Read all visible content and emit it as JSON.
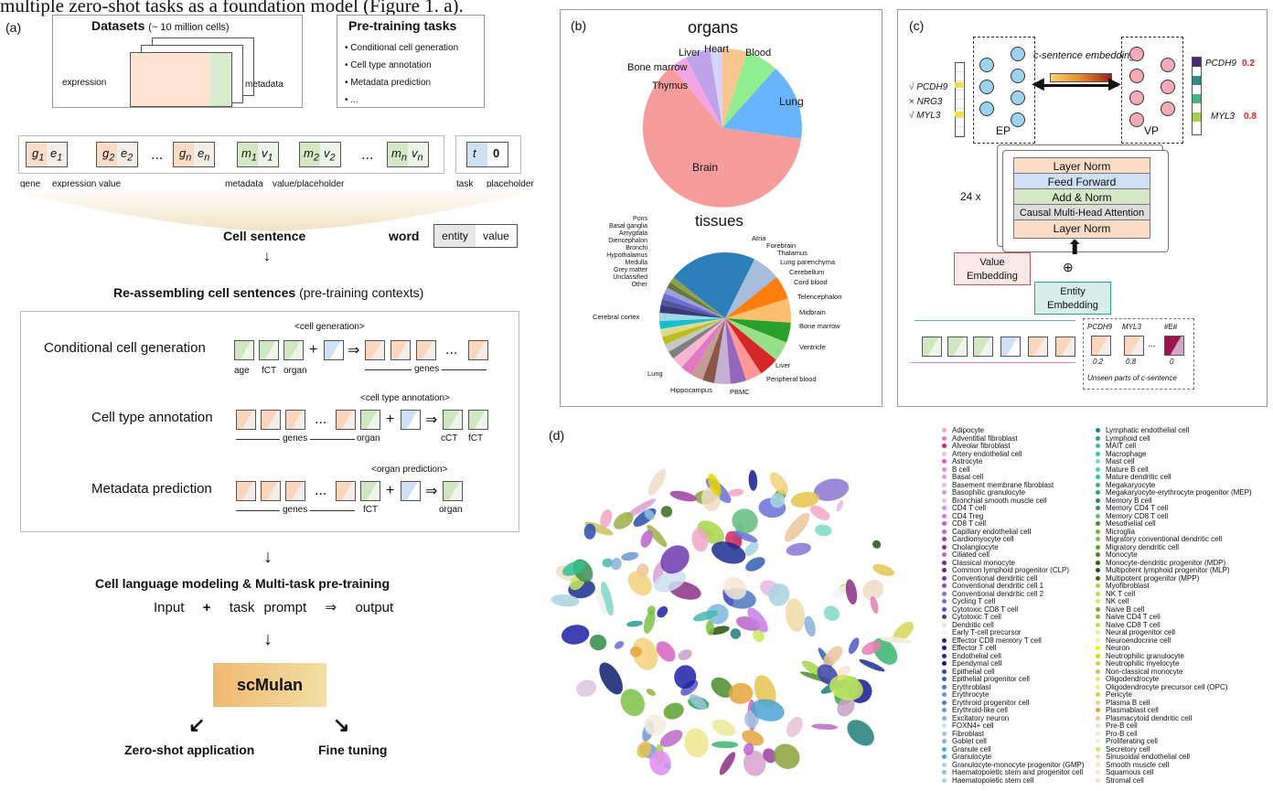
{
  "top_text": "multiple zero-shot tasks as a foundation model (Figure 1. a).",
  "panel_a": {
    "label": "(a)",
    "datasets_title": "Datasets",
    "datasets_sub": "(~ 10 million cells)",
    "expression": "expression",
    "metadata": "metadata",
    "pretrain_title": "Pre-training tasks",
    "pretrain_items": [
      "Conditional cell generation",
      "Cell type annotation",
      "Metadata prediction",
      "..."
    ],
    "tok_gene": "gene",
    "tok_expr": "expression value",
    "tok_metadata": "metadata",
    "tok_value": "value/placeholder",
    "tok_task": "task",
    "tok_placeholder": "placeholder",
    "cell_sentence": "Cell sentence",
    "word": "word",
    "entity": "entity",
    "value": "value",
    "reassembling": "Re-assembling cell sentences",
    "reassembling_sub": "(pre-training contexts)",
    "task1": "Conditional cell generation",
    "task1_prompt": "<cell generation>",
    "task1_labels": [
      "age",
      "fCT",
      "organ"
    ],
    "task2": "Cell type annotation",
    "task2_prompt": "<cell type annotation>",
    "task2_labels": [
      "organ",
      "cCT",
      "fCT"
    ],
    "task3": "Metadata prediction",
    "task3_prompt": "<organ prediction>",
    "task3_labels": [
      "fCT",
      "organ"
    ],
    "genes": "genes",
    "ellipsis": "...",
    "cell_lang": "Cell language modeling & Multi-task pre-training",
    "formula_input": "Input",
    "formula_plus": "+",
    "formula_task": "task prompt",
    "formula_arrow": "⇒",
    "formula_output": "output",
    "scmulan": "scMulan",
    "zero_shot": "Zero-shot application",
    "fine_tuning": "Fine tuning"
  },
  "panel_b": {
    "label": "(b)",
    "organs_title": "organs",
    "tissues_title": "tissues",
    "organ_labels": [
      "Liver",
      "Heart",
      "Blood",
      "Bone marrow",
      "Thymus",
      "Lung",
      "Brain"
    ],
    "tissue_left_labels": [
      "Pons",
      "Basal ganglia",
      "Amygdala",
      "Diencephalon",
      "Bronchi",
      "Hypothalamus",
      "Medulla",
      "Grey matter",
      "Unclassified",
      "Other"
    ],
    "tissue_right_labels": [
      "Atria",
      "Forebrain",
      "Thalamus",
      "Lung parenchyma",
      "Cerebellum",
      "Cord blood",
      "Telencephalon",
      "Midbrain",
      "Bone marrow",
      "Ventricle",
      "Liver",
      "Peripheral blood",
      "PBMC",
      "Hippocampus",
      "Lung",
      "Cerebral cortex"
    ]
  },
  "panel_c": {
    "label": "(c)",
    "c_sentence_embedding": "c-sentence embedding",
    "genes_in": [
      "PCDH9",
      "NRG3",
      "MYL3"
    ],
    "marks": [
      "√",
      "×",
      "√"
    ],
    "ep": "EP",
    "vp": "VP",
    "out_genes": [
      "PCDH9",
      "MYL3"
    ],
    "out_values": [
      "0.2",
      "0.8"
    ],
    "repeat": "24 x",
    "layers": [
      "Layer Norm",
      "Feed Forward",
      "Add & Norm",
      "Causal Multi-Head Attention",
      "Layer Norm"
    ],
    "value_embedding": "Value\nEmbedding",
    "entity_embedding": "Entity\nEmbedding",
    "unseen_genes": [
      "PCDH9",
      "MYL3",
      "#E#"
    ],
    "unseen_vals": [
      "0.2",
      "0.8",
      "0"
    ],
    "unseen_caption": "Unseen parts of c-sentence"
  },
  "panel_d": {
    "label": "(d)",
    "legend_col1": [
      "Adipocyte",
      "Adventitial fibroblast",
      "Alveolar fibroblast",
      "Artery endothelial cell",
      "Astrocyte",
      "B cell",
      "Basal cell",
      "Basement membrane fibroblast",
      "Basophilic granulocyte",
      "Bronchial smooth muscle cell",
      "CD4 T cell",
      "CD4 Treg",
      "CD8 T cell",
      "Capillary endothelial cell",
      "Cardiomyocyte cell",
      "Cholangiocyte",
      "Ciliated cell",
      "Classical monocyte",
      "Common lymphoid progenitor (CLP)",
      "Conventional dendritic cell",
      "Conventional dendritic cell 1",
      "Conventional dendritic cell 2",
      "Cycling T cell",
      "Cytotoxic CD8 T cell",
      "Cytotoxic T cell",
      "Dendritic cell",
      "Early T-cell precursor",
      "Effector CD8 memory T cell",
      "Effector T cell",
      "Endothelial cell",
      "Ependymal cell",
      "Epithelial cell",
      "Epithelial progenitor cell",
      "Erythroblast",
      "Erythrocyte",
      "Erythroid progenitor cell",
      "Erythroid-like cell",
      "Excitatory neuron",
      "FOXN4+ cell",
      "Fibroblast",
      "Goblet cell",
      "Granule cell",
      "Granulocyte",
      "Granulocyte-monocyte progenitor (GMP)",
      "Haematopoietic stem and progenitor cell",
      "Haematopoietic stem cell"
    ],
    "legend_col2": [
      "Lymphatic endothelial cell",
      "Lymphoid cell",
      "MAIT cell",
      "Macrophage",
      "Mast cell",
      "Mature B cell",
      "Mature dendritic cell",
      "Megakaryocyte",
      "Megakaryocyte-erythrocyte progenitor (MEP)",
      "Memory B cell",
      "Memory CD4 T cell",
      "Memory CD8 T cell",
      "Mesothelial cell",
      "Microglia",
      "Migratory conventional dendritic cell",
      "Migratory dendritic cell",
      "Monocyte",
      "Monocyte-dendritic progenitor (MDP)",
      "Multipotent lymphoid progenitor (MLP)",
      "Multipotent progenitor (MPP)",
      "Myofibroblast",
      "NK T cell",
      "NK cell",
      "Naive B cell",
      "Naive CD4 T cell",
      "Naive CD8 T cell",
      "Neural progenitor cell",
      "Neuroendocrine cell",
      "Neuron",
      "Neutrophilic granulocyte",
      "Neutrophilic myelocyte",
      "Non-classical monocyte",
      "Oligodendrocyte",
      "Oligodendrocyte precursor cell (OPC)",
      "Pericyte",
      "Plasma B cell",
      "Plasmablast cell",
      "Plasmacytoid dendritic cell",
      "Pre-B cell",
      "Pro-B cell",
      "Proliferating cell",
      "Secretory cell",
      "Sinusoidal endothelial cell",
      "Smooth muscle cell",
      "Squamous cell",
      "Stromal cell"
    ],
    "legend_colors1": [
      "#f3a6c8",
      "#e67fb2",
      "#d1245e",
      "#e8c2d3",
      "#d760c2",
      "#e88adf",
      "#d9a2d0",
      "#e8b8e2",
      "#c9a0c7",
      "#ddc6df",
      "#e28df3",
      "#c77ee8",
      "#c455e6",
      "#b864c9",
      "#9d3ea6",
      "#8d2f87",
      "#bb69c6",
      "#7b2a84",
      "#5d2a8a",
      "#6b3ab0",
      "#7a53c1",
      "#8b74d6",
      "#6870d6",
      "#5056c8",
      "#3c42a8",
      "#e5e2ec",
      "#f3f3f7",
      "#1d1fa3",
      "#151a90",
      "#1a2d8f",
      "#0d1d6f",
      "#2a4ea8",
      "#2f5fb3",
      "#4b78c6",
      "#6f95d3",
      "#4e80c0",
      "#6d9bd4",
      "#8ab0dc",
      "#cfdff0",
      "#9cc4e2",
      "#7db7de",
      "#5aa8d8",
      "#4aa3d4",
      "#a9d1e6",
      "#8cc2dc",
      "#a8d4e0"
    ],
    "legend_colors2": [
      "#1f7d7a",
      "#2a9a94",
      "#48b7ad",
      "#39c0ae",
      "#7fd8c6",
      "#4fd0ae",
      "#2fc28e",
      "#3ab36f",
      "#26a84f",
      "#2e8b46",
      "#3a8f55",
      "#66bb7f",
      "#4a8b2e",
      "#6fb43c",
      "#7dc147",
      "#5aa12c",
      "#4a7f24",
      "#2e5e16",
      "#2b4f12",
      "#3a6b1b",
      "#a6d64a",
      "#b7e04d",
      "#c7e85f",
      "#8aa23a",
      "#9fae45",
      "#d4d65c",
      "#eaea9a",
      "#f1eeb4",
      "#f5f000",
      "#e4d600",
      "#ddce4a",
      "#c9c25a",
      "#e8e27c",
      "#f0e88e",
      "#e8c44c",
      "#ecd386",
      "#e3a43c",
      "#ebc79a",
      "#f2dcc4",
      "#f5e5d2",
      "#f7ecdf",
      "#f3d07a",
      "#f0d9a6",
      "#f6e3bf",
      "#f2e7cf",
      "#efe0c8"
    ]
  }
}
